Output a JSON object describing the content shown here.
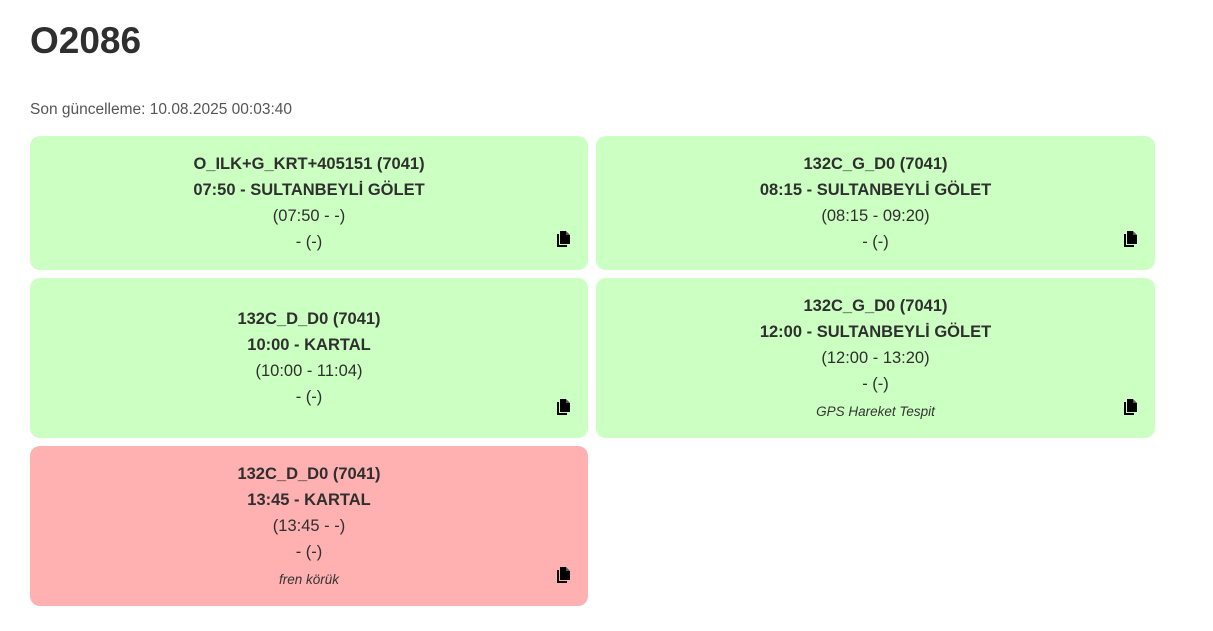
{
  "header": {
    "title": "O2086",
    "last_update": "Son güncelleme: 10.08.2025 00:03:40"
  },
  "cards": [
    {
      "status": "green",
      "route": "O_ILK+G_KRT+405151 (7041)",
      "departure": "07:50 - SULTANBEYLİ GÖLET",
      "time_range": "(07:50 - -)",
      "extra": "- (-)",
      "note": ""
    },
    {
      "status": "green",
      "route": "132C_G_D0 (7041)",
      "departure": "08:15 - SULTANBEYLİ GÖLET",
      "time_range": "(08:15 - 09:20)",
      "extra": "- (-)",
      "note": ""
    },
    {
      "status": "green",
      "route": "132C_D_D0 (7041)",
      "departure": "10:00 - KARTAL",
      "time_range": "(10:00 - 11:04)",
      "extra": "- (-)",
      "note": ""
    },
    {
      "status": "green",
      "route": "132C_G_D0 (7041)",
      "departure": "12:00 - SULTANBEYLİ GÖLET",
      "time_range": "(12:00 - 13:20)",
      "extra": "- (-)",
      "note": "GPS Hareket Tespit"
    },
    {
      "status": "red",
      "route": "132C_D_D0 (7041)",
      "departure": "13:45 - KARTAL",
      "time_range": "(13:45 - -)",
      "extra": "- (-)",
      "note": "fren körük"
    }
  ],
  "colors": {
    "green_card": "#ccffc2",
    "red_card": "#ffb0b0"
  },
  "icons": {
    "copy": "copy-icon"
  }
}
